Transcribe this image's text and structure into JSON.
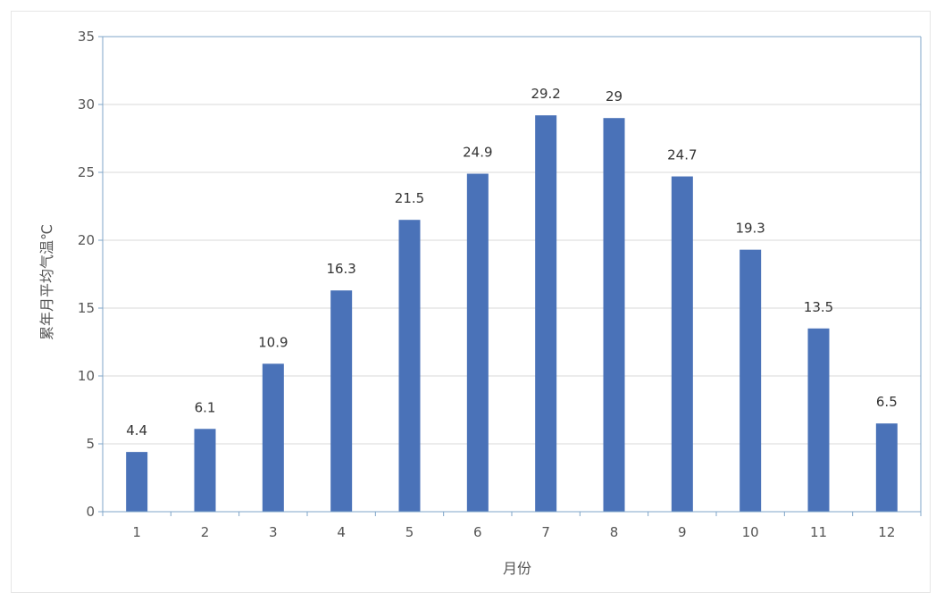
{
  "chart_data": {
    "type": "bar",
    "categories": [
      "1",
      "2",
      "3",
      "4",
      "5",
      "6",
      "7",
      "8",
      "9",
      "10",
      "11",
      "12"
    ],
    "values": [
      4.4,
      6.1,
      10.9,
      16.3,
      21.5,
      24.9,
      29.2,
      29,
      24.7,
      19.3,
      13.5,
      6.5
    ],
    "data_labels": [
      "4.4",
      "6.1",
      "10.9",
      "16.3",
      "21.5",
      "24.9",
      "29.2",
      "29",
      "24.7",
      "19.3",
      "13.5",
      "6.5"
    ],
    "title": "",
    "xlabel": "月份",
    "ylabel": "累年月平均气温℃",
    "ylim": [
      0,
      35
    ],
    "yticks": [
      "0",
      "5",
      "10",
      "15",
      "20",
      "25",
      "30",
      "35"
    ],
    "grid": true,
    "legend": "none",
    "colors": {
      "bar": "#4a72b8",
      "grid": "#d9d9d9",
      "axis": "#7fa5c8"
    }
  }
}
